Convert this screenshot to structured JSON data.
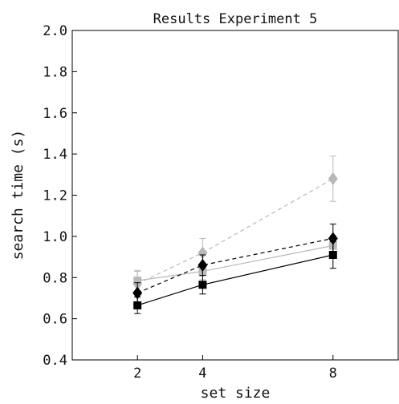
{
  "chart_data": {
    "type": "line",
    "title": "Results Experiment 5",
    "xlabel": "set size",
    "ylabel": "search time (s)",
    "x": [
      2,
      4,
      8
    ],
    "x_ticks": [
      2,
      4,
      8
    ],
    "x_tick_labels": [
      "2",
      "4",
      "8"
    ],
    "xlim": [
      0,
      10
    ],
    "ylim": [
      0.4,
      2.0
    ],
    "y_ticks": [
      0.4,
      0.6,
      0.8,
      1.0,
      1.2,
      1.4,
      1.6,
      1.8,
      2.0
    ],
    "y_tick_labels": [
      "0.4",
      "0.6",
      "0.8",
      "1.0",
      "1.2",
      "1.4",
      "1.6",
      "1.8",
      "2.0"
    ],
    "grid": false,
    "legend": "none",
    "series": [
      {
        "color": "#b8b8b8",
        "marker": "diamond",
        "line_style": "dashed",
        "values": [
          0.77,
          0.92,
          1.28
        ],
        "error": [
          0.06,
          0.07,
          0.11
        ]
      },
      {
        "color": "#b8b8b8",
        "marker": "square",
        "line_style": "solid",
        "values": [
          0.785,
          0.83,
          0.955
        ],
        "error": [
          0.05,
          0.04,
          0.05
        ]
      },
      {
        "color": "#000000",
        "marker": "diamond",
        "line_style": "dashed",
        "values": [
          0.725,
          0.86,
          0.99
        ],
        "error": [
          0.05,
          0.05,
          0.07
        ]
      },
      {
        "color": "#000000",
        "marker": "square",
        "line_style": "solid",
        "values": [
          0.665,
          0.765,
          0.91
        ],
        "error": [
          0.04,
          0.045,
          0.065
        ]
      }
    ]
  }
}
